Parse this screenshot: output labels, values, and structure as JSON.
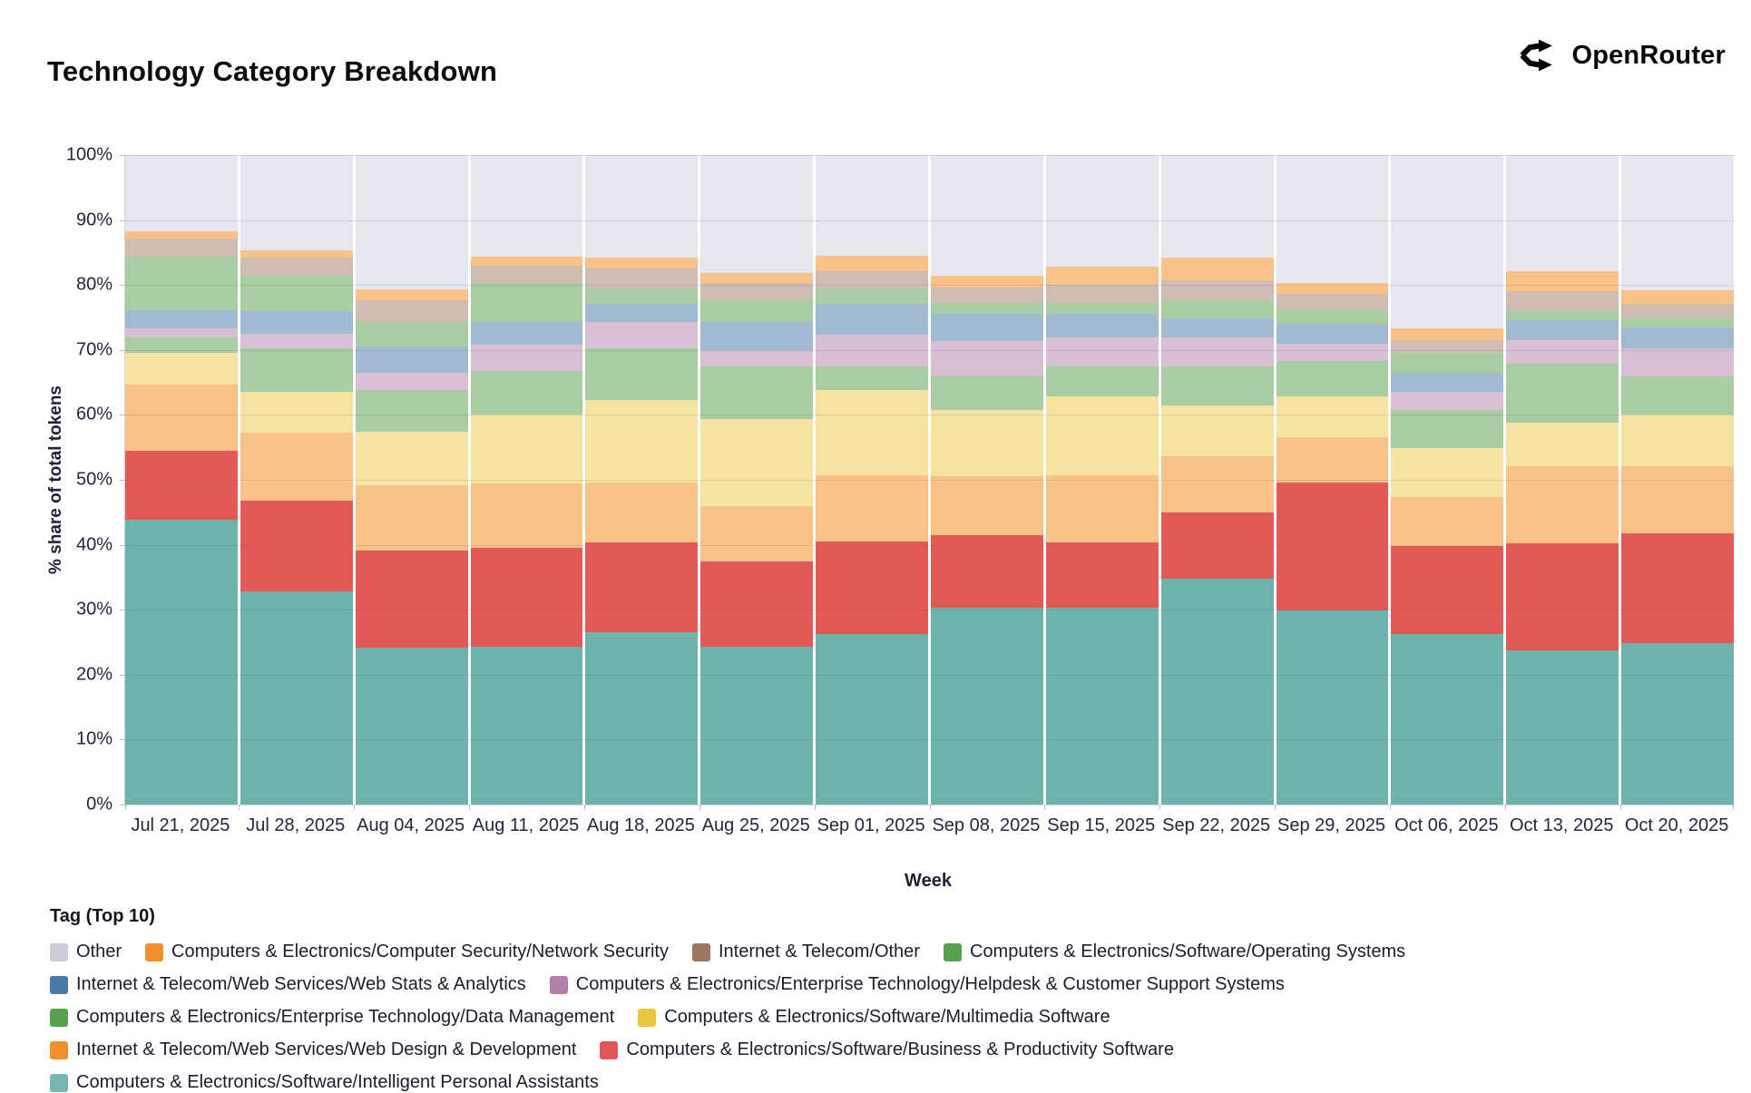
{
  "header": {
    "title": "Technology Category Breakdown",
    "brand": "OpenRouter"
  },
  "icons": {
    "brand_mark": "openrouter-fork-arrows"
  },
  "chart_data": {
    "type": "bar",
    "stacked": true,
    "normalized_percent": true,
    "title": "Technology Category Breakdown",
    "xlabel": "Week",
    "ylabel": "% share of total tokens",
    "ylim": [
      0,
      100
    ],
    "ytick_step": 10,
    "ytick_labels": [
      "0%",
      "10%",
      "20%",
      "30%",
      "40%",
      "50%",
      "60%",
      "70%",
      "80%",
      "90%",
      "100%"
    ],
    "grid": true,
    "legend_title": "Tag (Top 10)",
    "legend_position": "bottom",
    "categories": [
      "Jul 21, 2025",
      "Jul 28, 2025",
      "Aug 04, 2025",
      "Aug 11, 2025",
      "Aug 18, 2025",
      "Aug 25, 2025",
      "Sep 01, 2025",
      "Sep 08, 2025",
      "Sep 15, 2025",
      "Sep 22, 2025",
      "Sep 29, 2025",
      "Oct 06, 2025",
      "Oct 13, 2025",
      "Oct 20, 2025"
    ],
    "series": [
      {
        "id": "other",
        "name": "Other",
        "legend_color": "#cdcdd9",
        "fill": "#e6e6f0",
        "values": [
          11.7,
          14.7,
          20.7,
          15.7,
          15.7,
          18.2,
          15.5,
          18.5,
          17.2,
          15.8,
          19.7,
          26.7,
          17.8,
          20.8
        ]
      },
      {
        "id": "network-security",
        "name": "Computers & Electronics/Computer Security/Network Security",
        "legend_color": "#f18f2c",
        "fill": "#f9c286",
        "values": [
          1.2,
          1.1,
          1.6,
          1.3,
          1.7,
          1.5,
          2.3,
          1.9,
          2.8,
          3.5,
          1.6,
          1.8,
          3.2,
          2.1
        ]
      },
      {
        "id": "internet-telecom-other",
        "name": "Internet & Telecom/Other",
        "legend_color": "#9d7660",
        "fill": "#cfbdb3",
        "values": [
          2.8,
          2.7,
          3.4,
          2.7,
          3.1,
          2.6,
          2.7,
          2.3,
          2.7,
          3.0,
          2.4,
          1.9,
          3.0,
          2.2
        ]
      },
      {
        "id": "operating-systems",
        "name": "Computers & Electronics/Software/Operating Systems",
        "legend_color": "#57a04e",
        "fill": "#a8cda2",
        "values": [
          8.2,
          5.5,
          3.8,
          6.0,
          2.4,
          3.4,
          2.4,
          1.8,
          1.8,
          2.9,
          2.3,
          3.1,
          1.4,
          1.4
        ]
      },
      {
        "id": "web-stats-analytics",
        "name": "Internet & Telecom/Web Services/Web Stats & Analytics",
        "legend_color": "#4a7aaa",
        "fill": "#a2b9d2",
        "values": [
          2.8,
          3.5,
          4.0,
          3.5,
          2.8,
          4.3,
          4.8,
          4.1,
          3.6,
          2.8,
          3.1,
          3.0,
          3.1,
          3.2
        ]
      },
      {
        "id": "helpdesk-support",
        "name": "Computers & Electronics/Enterprise Technology/Helpdesk & Customer Support Systems",
        "legend_color": "#b67fa9",
        "fill": "#d8bfd6",
        "values": [
          1.4,
          2.2,
          2.7,
          4.0,
          4.0,
          2.6,
          4.8,
          5.4,
          4.4,
          4.6,
          2.6,
          2.7,
          3.6,
          4.4
        ]
      },
      {
        "id": "data-management",
        "name": "Computers & Electronics/Enterprise Technology/Data Management",
        "legend_color": "#57a04e",
        "fill": "#a8cda2",
        "values": [
          2.4,
          6.8,
          6.4,
          6.7,
          8.0,
          8.1,
          3.7,
          5.2,
          4.6,
          6.0,
          5.4,
          5.9,
          9.1,
          5.8
        ]
      },
      {
        "id": "multimedia-software",
        "name": "Computers & Electronics/Software/Multimedia Software",
        "legend_color": "#e8c63f",
        "fill": "#f5e4a1",
        "values": [
          4.9,
          6.2,
          8.2,
          10.7,
          12.7,
          13.3,
          13.1,
          10.2,
          12.2,
          7.8,
          6.3,
          7.5,
          6.7,
          8.0
        ]
      },
      {
        "id": "web-design-development",
        "name": "Internet & Telecom/Web Services/Web Design & Development",
        "legend_color": "#f18f2c",
        "fill": "#f9c286",
        "values": [
          10.1,
          10.5,
          10.1,
          9.9,
          9.3,
          8.5,
          10.2,
          9.1,
          10.4,
          8.6,
          7.0,
          7.6,
          11.9,
          10.4
        ]
      },
      {
        "id": "business-productivity",
        "name": "Computers & Electronics/Software/Business & Productivity Software",
        "legend_color": "#e05759",
        "fill": "#e25955",
        "values": [
          10.7,
          14.0,
          15.0,
          15.2,
          13.7,
          13.2,
          14.2,
          11.2,
          10.0,
          10.2,
          19.7,
          13.6,
          16.4,
          16.9
        ]
      },
      {
        "id": "intelligent-personal-assistants",
        "name": "Computers & Electronics/Software/Intelligent Personal Assistants",
        "legend_color": "#76b7b2",
        "fill": "#6cb2ad",
        "values": [
          43.8,
          32.8,
          24.1,
          24.3,
          26.6,
          24.3,
          26.3,
          30.3,
          30.3,
          34.8,
          29.9,
          26.2,
          23.8,
          24.8
        ]
      }
    ],
    "stack_order_bottom_to_top": [
      "intelligent-personal-assistants",
      "business-productivity",
      "web-design-development",
      "multimedia-software",
      "data-management",
      "helpdesk-support",
      "web-stats-analytics",
      "operating-systems",
      "internet-telecom-other",
      "network-security",
      "other"
    ]
  }
}
